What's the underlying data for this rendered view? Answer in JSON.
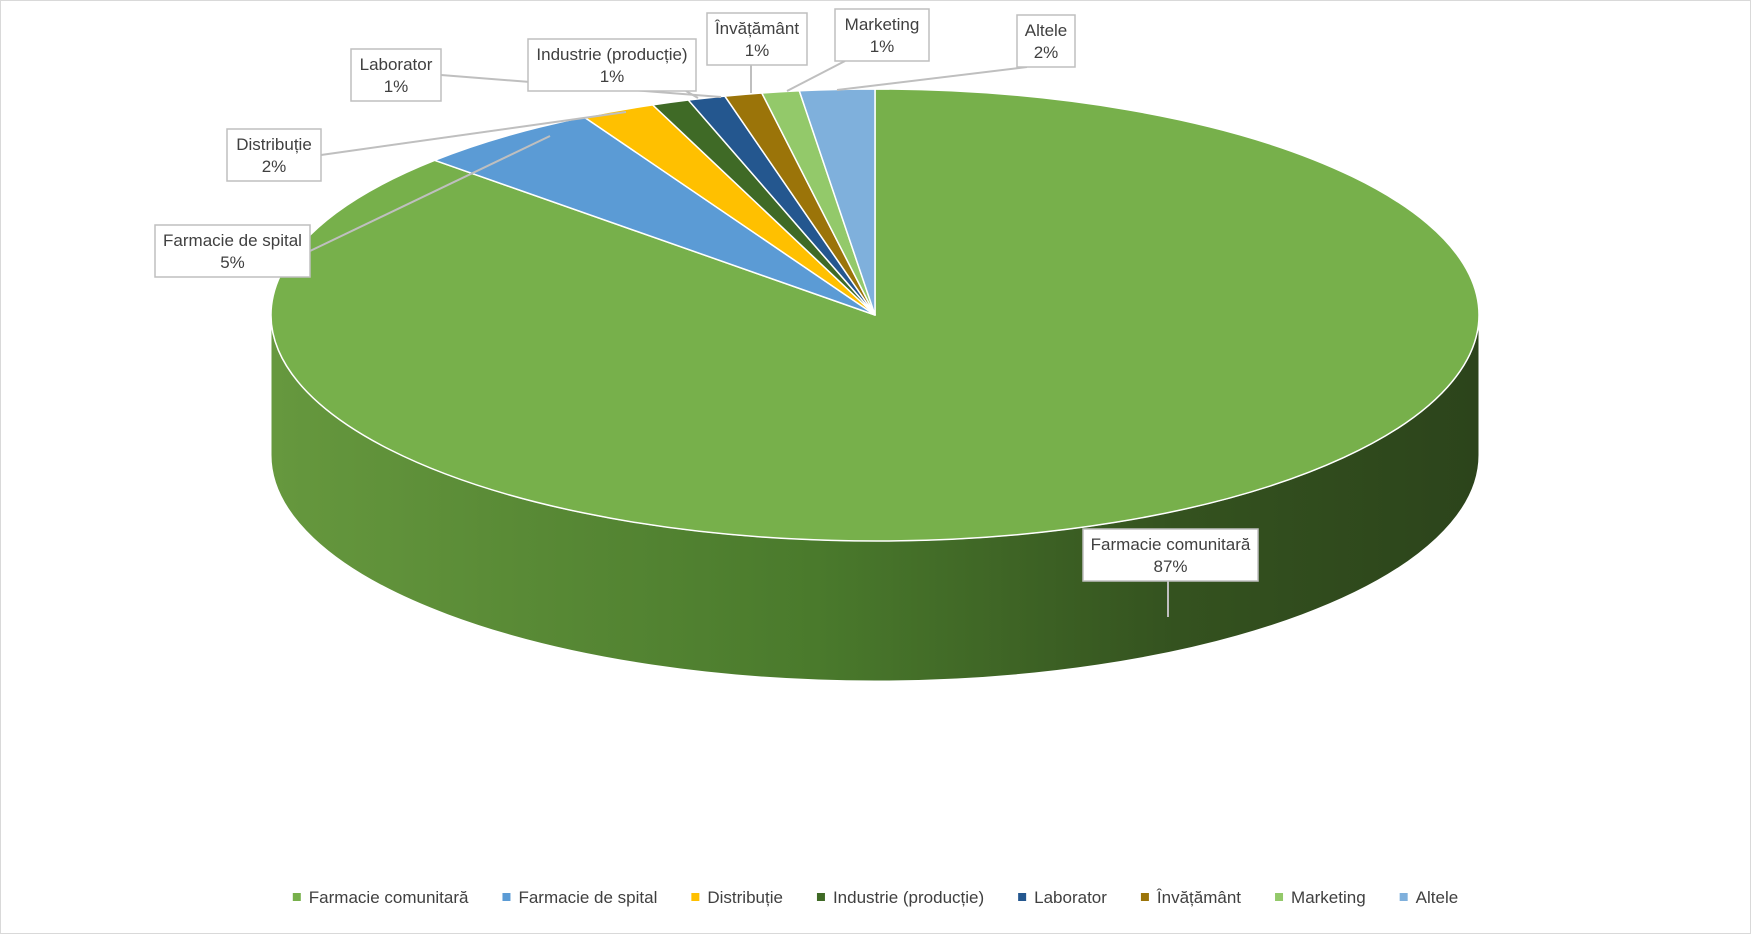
{
  "chart_data": {
    "type": "pie",
    "style": "3d",
    "title": "",
    "categories": [
      "Farmacie comunitară",
      "Farmacie de spital",
      "Distribuție",
      "Industrie (producție)",
      "Laborator",
      "Învățământ",
      "Marketing",
      "Altele"
    ],
    "values": [
      87,
      5,
      2,
      1,
      1,
      1,
      1,
      2
    ],
    "value_labels": [
      "87%",
      "5%",
      "2%",
      "1%",
      "1%",
      "1%",
      "1%",
      "2%"
    ],
    "colors": [
      "#77b04b",
      "#5b9bd5",
      "#ffc000",
      "#3f6a26",
      "#24578f",
      "#9b7409",
      "#93c96a",
      "#7fb0dc"
    ],
    "side_colors": [
      "#4e7a30",
      "#3a6c9c",
      "#b08400",
      "#2b4a1a",
      "#173d66",
      "#6b5006",
      "#659148",
      "#5a86ad"
    ],
    "legend_position": "bottom",
    "data_labels": "callout"
  }
}
